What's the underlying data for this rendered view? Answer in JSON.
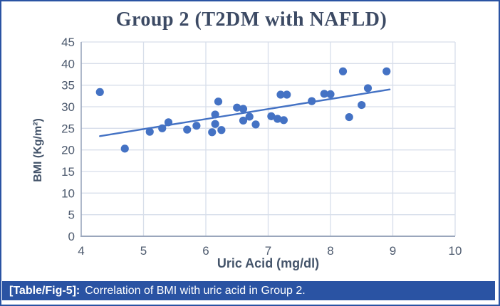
{
  "figure": {
    "caption_label": "[Table/Fig-5]:",
    "caption_text": "Correlation of BMI with uric acid in Group 2."
  },
  "chart_data": {
    "type": "scatter",
    "title": "Group 2 (T2DM with NAFLD)",
    "xlabel": "Uric Acid (mg/dl)",
    "ylabel": "BMI (Kg/m²)",
    "xlim": [
      4,
      10
    ],
    "ylim": [
      0,
      45
    ],
    "x_ticks": [
      4,
      5,
      6,
      7,
      8,
      9,
      10
    ],
    "y_ticks": [
      0,
      5,
      10,
      15,
      20,
      25,
      30,
      35,
      40,
      45
    ],
    "grid": true,
    "legend": false,
    "series": [
      {
        "name": "BMI vs Uric Acid (Group 2)",
        "points": [
          [
            4.3,
            33.4
          ],
          [
            4.7,
            20.3
          ],
          [
            5.1,
            24.2
          ],
          [
            5.3,
            25.0
          ],
          [
            5.4,
            26.4
          ],
          [
            5.7,
            24.7
          ],
          [
            5.85,
            25.6
          ],
          [
            6.1,
            24.1
          ],
          [
            6.15,
            26.0
          ],
          [
            6.15,
            28.2
          ],
          [
            6.2,
            31.2
          ],
          [
            6.25,
            24.6
          ],
          [
            6.5,
            29.8
          ],
          [
            6.6,
            29.5
          ],
          [
            6.6,
            26.8
          ],
          [
            6.7,
            27.7
          ],
          [
            6.8,
            25.9
          ],
          [
            7.05,
            27.8
          ],
          [
            7.15,
            27.2
          ],
          [
            7.25,
            26.9
          ],
          [
            7.2,
            32.8
          ],
          [
            7.3,
            32.8
          ],
          [
            7.7,
            31.3
          ],
          [
            7.9,
            33.0
          ],
          [
            8.0,
            32.9
          ],
          [
            8.2,
            38.2
          ],
          [
            8.3,
            27.6
          ],
          [
            8.5,
            30.4
          ],
          [
            8.6,
            34.3
          ],
          [
            8.9,
            38.2
          ]
        ]
      }
    ],
    "trendline": {
      "x1": 4.3,
      "y1": 23.2,
      "x2": 8.95,
      "y2": 34.0
    },
    "colors": {
      "marker": "#4472C4",
      "trendline": "#4472C4",
      "gridline": "#D7DEEA",
      "axis_line": "#9AA6BC",
      "tick_text": "#4D5A6E",
      "title_text": "#3C4A64",
      "axis_title_text": "#44546A",
      "caption_bg": "#2A53A3",
      "caption_text": "#FFFFFF"
    }
  }
}
